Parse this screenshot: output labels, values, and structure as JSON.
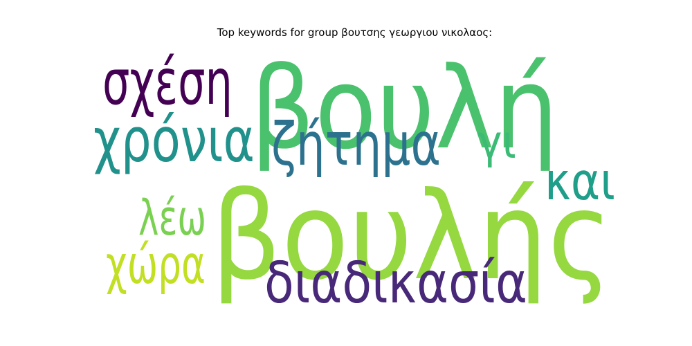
{
  "chart_data": {
    "type": "wordcloud",
    "title": "Top keywords for group βουτσης γεωργιου νικολαος:",
    "words": [
      {
        "text": "βουλής",
        "weight": 1.0,
        "color": "#95d840"
      },
      {
        "text": "βουλή",
        "weight": 0.93,
        "color": "#4ac16d"
      },
      {
        "text": "σχέση",
        "weight": 0.52,
        "color": "#440154"
      },
      {
        "text": "χρόνια",
        "weight": 0.5,
        "color": "#21918c"
      },
      {
        "text": "ζήτημα",
        "weight": 0.49,
        "color": "#2c728e"
      },
      {
        "text": "διαδικασία",
        "weight": 0.47,
        "color": "#482878"
      },
      {
        "text": "χώρα",
        "weight": 0.44,
        "color": "#c2df23"
      },
      {
        "text": "και",
        "weight": 0.43,
        "color": "#1f9e89"
      },
      {
        "text": "λέω",
        "weight": 0.4,
        "color": "#7ad151"
      },
      {
        "text": "γι",
        "weight": 0.38,
        "color": "#3bbb75"
      }
    ]
  }
}
